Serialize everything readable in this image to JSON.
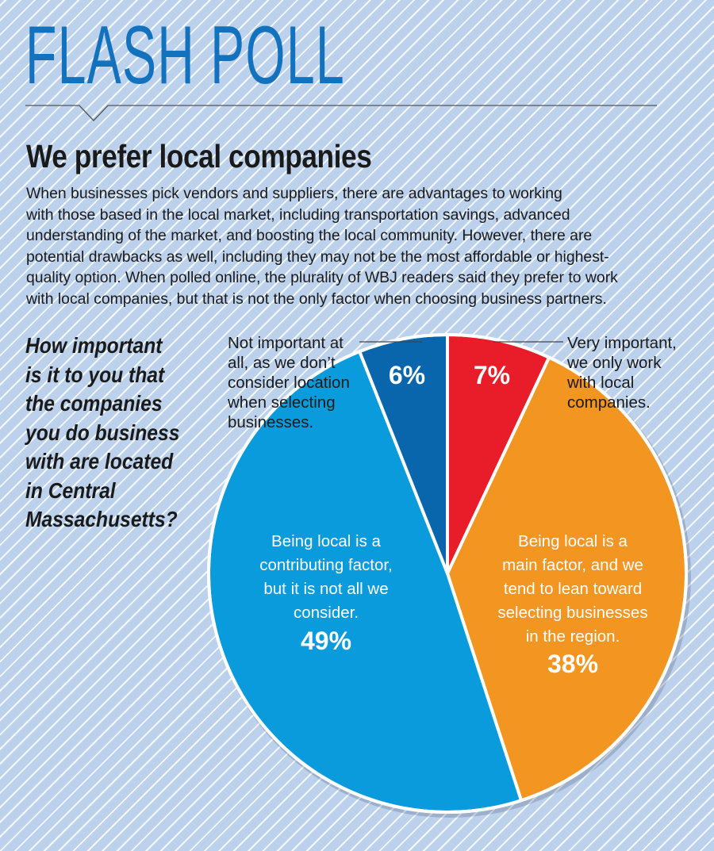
{
  "header": {
    "title": "FLASH POLL"
  },
  "headline": "We prefer local companies",
  "body_lines": [
    "When businesses pick vendors and suppliers, there are advantages to working",
    "with those based in the local market, including transportation savings, advanced",
    "understanding of the market, and boosting the local community. However, there are",
    "potential drawbacks as well, including they may not be the most affordable or highest-",
    "quality option. When polled online, the plurality of WBJ readers said they prefer to work",
    "with local companies, but that is not the only factor when choosing business partners."
  ],
  "question_lines": [
    "How important",
    "is it to you that",
    "the companies",
    "you do business",
    "with are located",
    "in Central",
    "Massachusetts?"
  ],
  "chart_data": {
    "type": "pie",
    "title": "How important is it to you that the companies you do business with are located in Central Massachusetts?",
    "start": "top",
    "direction": "clockwise",
    "slices": [
      {
        "label_lines": [
          "Very important,",
          "we only work",
          "with local",
          "companies."
        ],
        "value": 7,
        "display": "7%",
        "color": "#e91d2a"
      },
      {
        "label_lines": [
          "Being local is a",
          "main factor, and we",
          "tend to lean toward",
          "selecting businesses",
          "in the region."
        ],
        "value": 38,
        "display": "38%",
        "color": "#f39521"
      },
      {
        "label_lines": [
          "Being local is a",
          "contributing factor,",
          "but it is not all we",
          "consider."
        ],
        "value": 49,
        "display": "49%",
        "color": "#0a9bdc"
      },
      {
        "label_lines": [
          "Not important at",
          "all, as we don’t",
          "consider location",
          "when selecting",
          "businesses."
        ],
        "value": 6,
        "display": "6%",
        "color": "#0966ad"
      }
    ]
  }
}
